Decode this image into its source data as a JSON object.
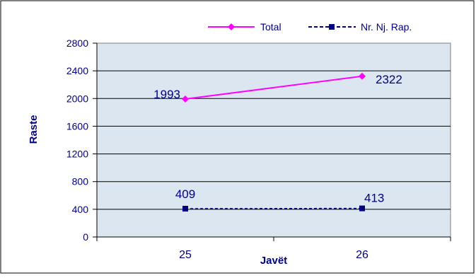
{
  "chart_data": {
    "type": "line",
    "categories": [
      "25",
      "26"
    ],
    "series": [
      {
        "name": "Total",
        "values": [
          1993,
          2322
        ],
        "color": "#ff00ff",
        "marker": "diamond",
        "dash": "solid"
      },
      {
        "name": "Nr. Nj. Rap.",
        "values": [
          409,
          413
        ],
        "color": "#000080",
        "marker": "square",
        "dash": "dashed"
      }
    ],
    "xlabel": "Javët",
    "ylabel": "Raste",
    "ylim": [
      0,
      2800
    ],
    "yticks": [
      0,
      400,
      800,
      1200,
      1600,
      2000,
      2400,
      2800
    ],
    "grid": true,
    "legend_position": "top",
    "plot_background": "#dce6f1",
    "text_color": "#000080"
  }
}
